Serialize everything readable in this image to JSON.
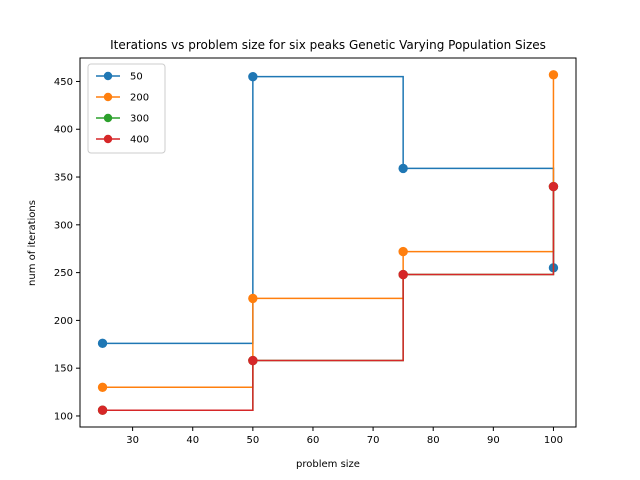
{
  "chart_data": {
    "type": "line",
    "drawstyle": "steps-post",
    "title": "Iterations vs problem size for six peaks Genetic Varying Population Sizes",
    "xlabel": "problem size",
    "ylabel": "num of iterations",
    "xlim": [
      21.25,
      103.75
    ],
    "ylim": [
      88.45,
      474.55
    ],
    "xticks": [
      30,
      40,
      50,
      60,
      70,
      80,
      90,
      100
    ],
    "yticks": [
      100,
      150,
      200,
      250,
      300,
      350,
      400,
      450
    ],
    "grid": false,
    "legend_position": "top-left",
    "x": [
      25,
      50,
      75,
      100
    ],
    "series": [
      {
        "name": "50",
        "color": "#1f77b4",
        "values": [
          176,
          455,
          359,
          255
        ]
      },
      {
        "name": "200",
        "color": "#ff7f0e",
        "values": [
          130,
          223,
          272,
          457
        ]
      },
      {
        "name": "300",
        "color": "#2ca02c",
        "values": [
          106,
          158,
          248,
          340
        ]
      },
      {
        "name": "400",
        "color": "#d62728",
        "values": [
          106,
          158,
          248,
          340
        ]
      }
    ]
  }
}
